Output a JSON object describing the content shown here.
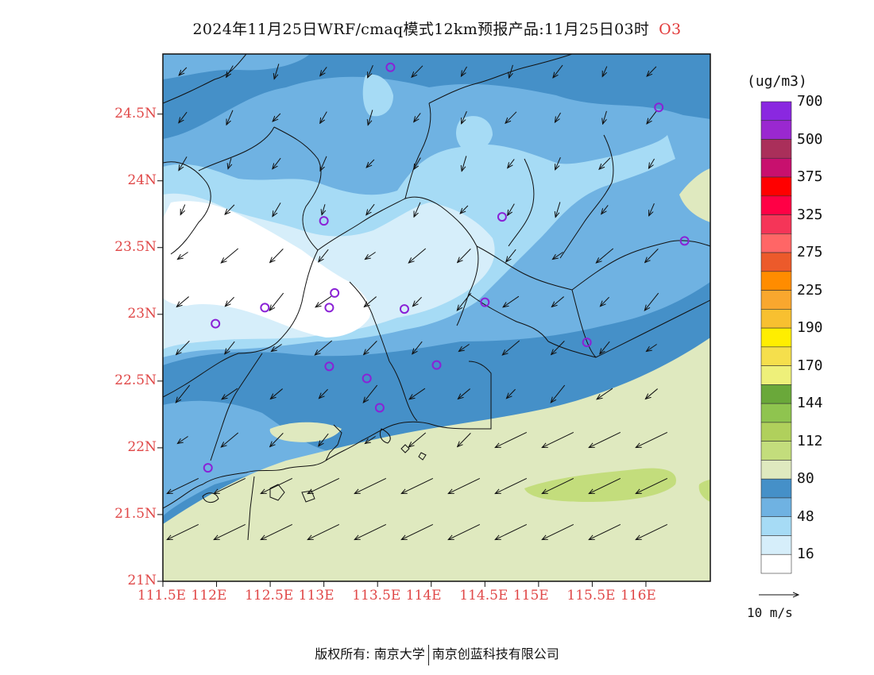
{
  "title": {
    "main": "2024年11月25日WRF/cmaq模式12km预报产品:11月25日03时",
    "species": "O3"
  },
  "map": {
    "lat_ticks": [
      "24.5N",
      "24N",
      "23.5N",
      "23N",
      "22.5N",
      "22N",
      "21.5N",
      "21N"
    ],
    "lon_ticks": [
      "111.5E",
      "112E",
      "112.5E",
      "113E",
      "113.5E",
      "114E",
      "114.5E",
      "115E",
      "115.5E",
      "116E"
    ],
    "lon_range": [
      111.5,
      116.6
    ],
    "lat_range": [
      21.0,
      24.95
    ]
  },
  "legend": {
    "unit": "(ug/m3)",
    "colors": [
      "#ffffff",
      "#d6eefa",
      "#a6dbf5",
      "#6fb2e2",
      "#4590c8",
      "#dfe9bf",
      "#c3dd7c",
      "#b0d05c",
      "#8fc44f",
      "#6aa83a",
      "#eef07a",
      "#f5df4c",
      "#ffee00",
      "#f8c030",
      "#f9a72e",
      "#ff8c00",
      "#ec5a2b",
      "#ff6666",
      "#f53558",
      "#ff0045",
      "#ff0000",
      "#c8106e",
      "#aa2f5a",
      "#9a28d0",
      "#8a28e0"
    ],
    "labels": [
      "16",
      "48",
      "80",
      "112",
      "144",
      "170",
      "190",
      "225",
      "275",
      "325",
      "375",
      "500",
      "700"
    ]
  },
  "wind_reference": "10 m/s",
  "stations": [
    {
      "lon": 113.62,
      "lat": 24.85
    },
    {
      "lon": 116.12,
      "lat": 24.55
    },
    {
      "lon": 113.0,
      "lat": 23.7
    },
    {
      "lon": 114.66,
      "lat": 23.73
    },
    {
      "lon": 116.36,
      "lat": 23.55
    },
    {
      "lon": 112.45,
      "lat": 23.05
    },
    {
      "lon": 111.99,
      "lat": 22.93
    },
    {
      "lon": 113.1,
      "lat": 23.16
    },
    {
      "lon": 113.05,
      "lat": 23.05
    },
    {
      "lon": 113.75,
      "lat": 23.04
    },
    {
      "lon": 114.5,
      "lat": 23.09
    },
    {
      "lon": 115.45,
      "lat": 22.79
    },
    {
      "lon": 114.05,
      "lat": 22.62
    },
    {
      "lon": 113.05,
      "lat": 22.61
    },
    {
      "lon": 113.4,
      "lat": 22.52
    },
    {
      "lon": 113.52,
      "lat": 22.3
    },
    {
      "lon": 111.92,
      "lat": 21.85
    }
  ],
  "footer": {
    "left": "版权所有: 南京大学",
    "right": "南京创蓝科技有限公司"
  }
}
